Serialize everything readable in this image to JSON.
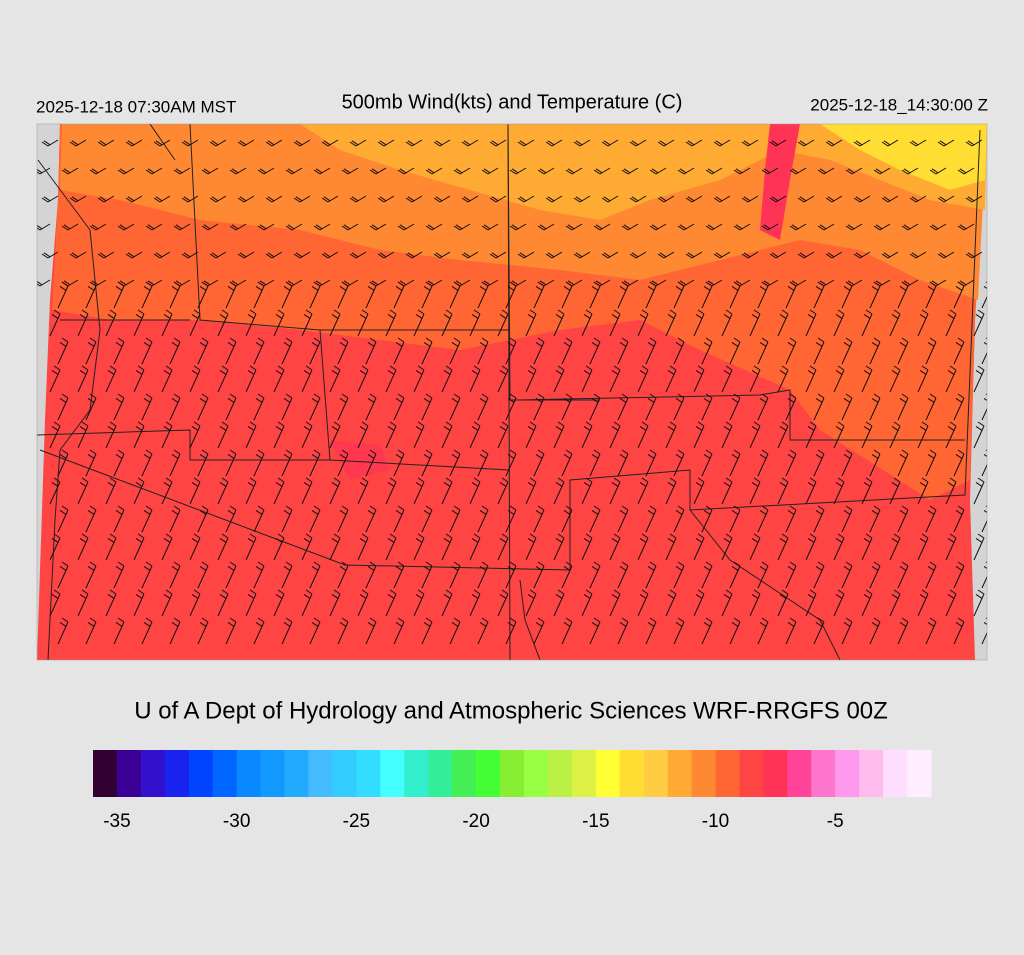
{
  "header": {
    "left": "2025-12-18 07:30AM MST",
    "title": "500mb Wind(kts) and Temperature (C)",
    "right": "2025-12-18_14:30:00 Z"
  },
  "credit": "U of A Dept of Hydrology and Atmospheric Sciences WRF-RRGFS 00Z",
  "legend": {
    "min": -36,
    "max": -1,
    "colors": [
      "#330033",
      "#3c0096",
      "#3311cc",
      "#1a22ee",
      "#0044ff",
      "#0066ff",
      "#0a88ff",
      "#1199ff",
      "#22aaff",
      "#44bbff",
      "#33ccff",
      "#33ddff",
      "#44ffff",
      "#33eecc",
      "#33ee99",
      "#44ee55",
      "#44ff33",
      "#88ee33",
      "#99ff44",
      "#bbf044",
      "#ddf044",
      "#ffff33",
      "#ffdd33",
      "#ffcc44",
      "#ffaa33",
      "#ff8833",
      "#ff6633",
      "#ff4444",
      "#ff3355",
      "#ff4499",
      "#ff77cc",
      "#ff99ee",
      "#ffbbee",
      "#ffddff",
      "#ffeeff"
    ],
    "ticks": [
      -35,
      -30,
      -25,
      -20,
      -15,
      -10,
      -5
    ]
  }
}
